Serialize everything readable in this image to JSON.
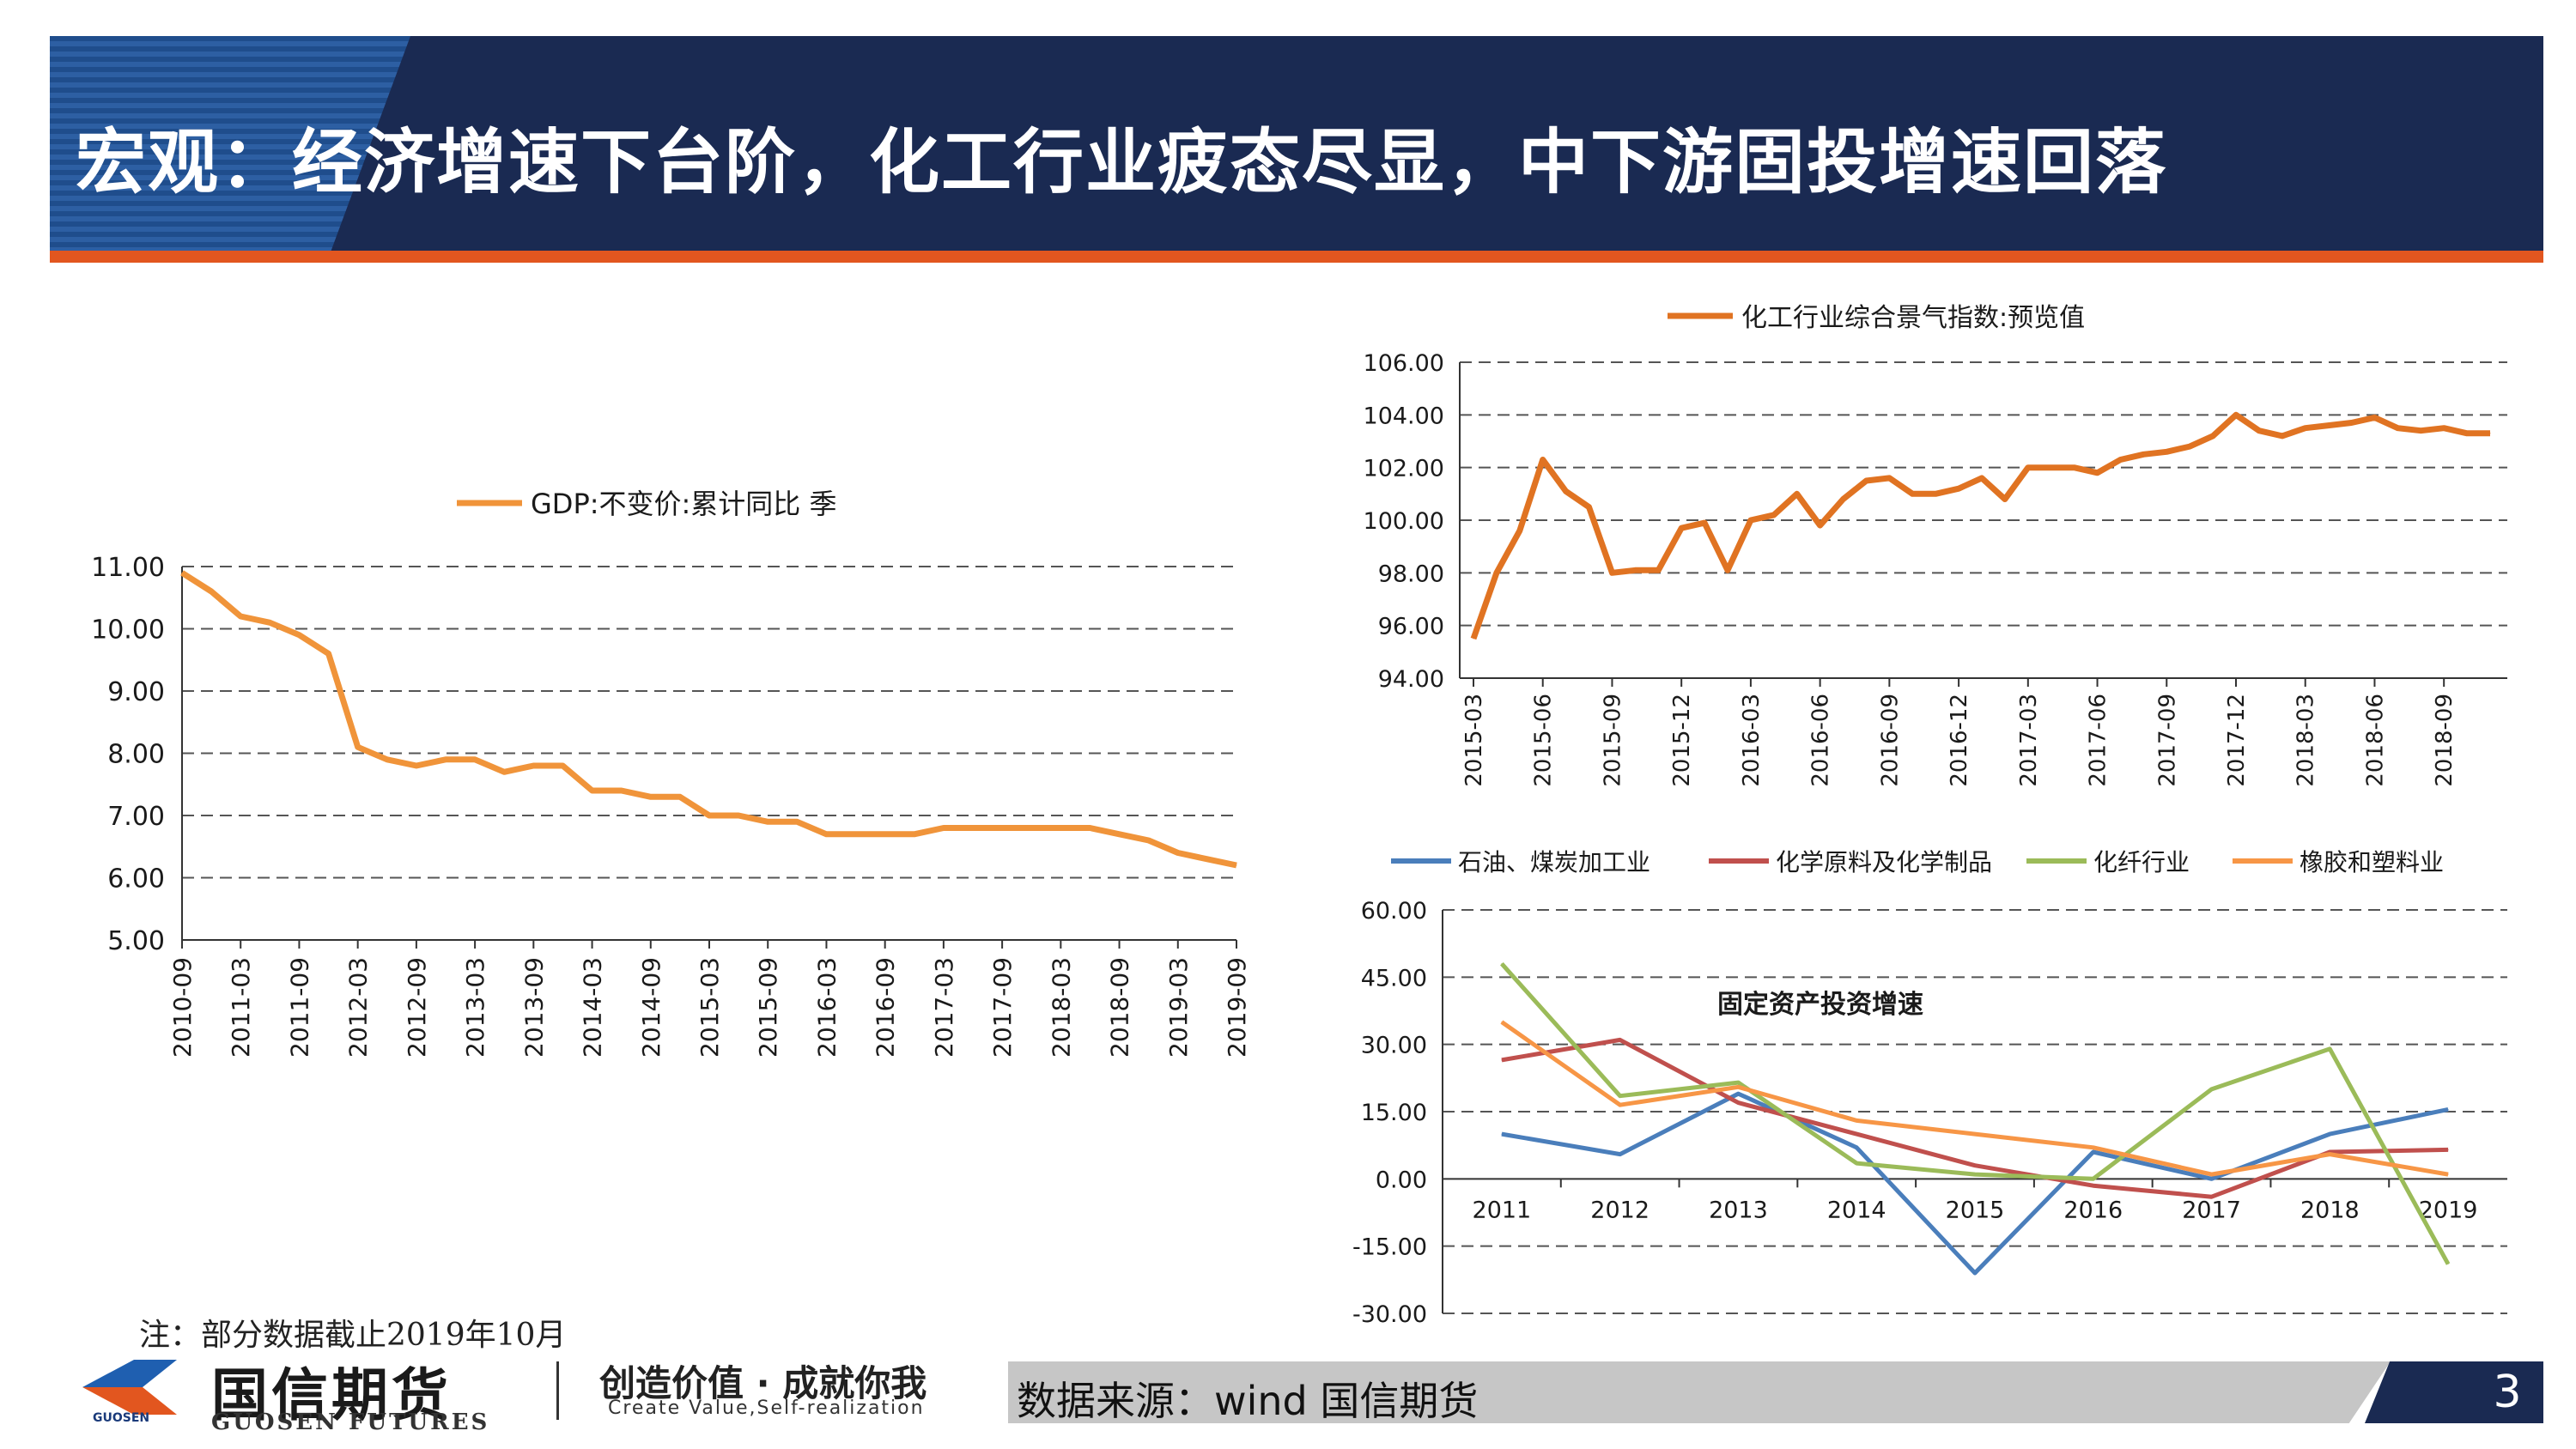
{
  "header": {
    "title": "宏观：经济增速下台阶，化工行业疲态尽显，中下游固投增速回落"
  },
  "colors": {
    "navy": "#1a2a52",
    "accent_orange": "#e2561f",
    "gdp_line": "#f0943a",
    "chem_line": "#e07322",
    "series_blue": "#4a7ebb",
    "series_red": "#c0504d",
    "series_green": "#9bbb59",
    "series_orange": "#f79646"
  },
  "chart_data": [
    {
      "type": "line",
      "legend": "GDP:不变价:累计同比 季",
      "ylim": [
        5,
        11
      ],
      "yticks": [
        "5.00",
        "6.00",
        "7.00",
        "8.00",
        "9.00",
        "10.00",
        "11.00"
      ],
      "xticks": [
        "2010-09",
        "2011-03",
        "2011-09",
        "2012-03",
        "2012-09",
        "2013-03",
        "2013-09",
        "2014-03",
        "2014-09",
        "2015-03",
        "2015-09",
        "2016-03",
        "2016-09",
        "2017-03",
        "2017-09",
        "2018-03",
        "2018-09",
        "2019-03",
        "2019-09"
      ],
      "x": [
        "2010-09",
        "2010-12",
        "2011-03",
        "2011-06",
        "2011-09",
        "2011-12",
        "2012-03",
        "2012-06",
        "2012-09",
        "2012-12",
        "2013-03",
        "2013-06",
        "2013-09",
        "2013-12",
        "2014-03",
        "2014-06",
        "2014-09",
        "2014-12",
        "2015-03",
        "2015-06",
        "2015-09",
        "2015-12",
        "2016-03",
        "2016-06",
        "2016-09",
        "2016-12",
        "2017-03",
        "2017-06",
        "2017-09",
        "2017-12",
        "2018-03",
        "2018-06",
        "2018-09",
        "2018-12",
        "2019-03",
        "2019-06",
        "2019-09"
      ],
      "values": [
        10.9,
        10.6,
        10.2,
        10.1,
        9.9,
        9.6,
        8.1,
        7.9,
        7.8,
        7.9,
        7.9,
        7.7,
        7.8,
        7.8,
        7.4,
        7.4,
        7.3,
        7.3,
        7.0,
        7.0,
        6.9,
        6.9,
        6.7,
        6.7,
        6.7,
        6.7,
        6.8,
        6.8,
        6.8,
        6.8,
        6.8,
        6.8,
        6.7,
        6.6,
        6.4,
        6.3,
        6.2
      ],
      "grid": true,
      "legend_position": "top"
    },
    {
      "type": "line",
      "legend": "化工行业综合景气指数:预览值",
      "ylim": [
        94,
        106
      ],
      "yticks": [
        "94.00",
        "96.00",
        "98.00",
        "100.00",
        "102.00",
        "104.00",
        "106.00"
      ],
      "xticks": [
        "2015-03",
        "2015-06",
        "2015-09",
        "2015-12",
        "2016-03",
        "2016-06",
        "2016-09",
        "2016-12",
        "2017-03",
        "2017-06",
        "2017-09",
        "2017-12",
        "2018-03",
        "2018-06",
        "2018-09"
      ],
      "x": [
        "2015-03",
        "2015-04",
        "2015-05",
        "2015-06",
        "2015-07",
        "2015-08",
        "2015-09",
        "2015-10",
        "2015-11",
        "2015-12",
        "2016-01",
        "2016-02",
        "2016-03",
        "2016-04",
        "2016-05",
        "2016-06",
        "2016-07",
        "2016-08",
        "2016-09",
        "2016-10",
        "2016-11",
        "2016-12",
        "2017-01",
        "2017-02",
        "2017-03",
        "2017-04",
        "2017-05",
        "2017-06",
        "2017-07",
        "2017-08",
        "2017-09",
        "2017-10",
        "2017-11",
        "2017-12",
        "2018-01",
        "2018-02",
        "2018-03",
        "2018-04",
        "2018-05",
        "2018-06",
        "2018-07",
        "2018-08",
        "2018-09",
        "2018-10",
        "2018-11"
      ],
      "values": [
        95.5,
        98.0,
        99.6,
        102.3,
        101.1,
        100.5,
        98.0,
        98.1,
        98.1,
        99.7,
        99.9,
        98.1,
        100.0,
        100.2,
        101.0,
        99.8,
        100.8,
        101.5,
        101.6,
        101.0,
        101.0,
        101.2,
        101.6,
        100.8,
        102.0,
        102.0,
        102.0,
        101.8,
        102.3,
        102.5,
        102.6,
        102.8,
        103.2,
        104.0,
        103.4,
        103.2,
        103.5,
        103.6,
        103.7,
        103.9,
        103.5,
        103.4,
        103.5,
        103.3,
        103.3
      ],
      "grid": true,
      "legend_position": "top"
    },
    {
      "type": "line",
      "title": "固定资产投资增速",
      "ylim": [
        -30,
        60
      ],
      "yticks": [
        "-30.00",
        "-15.00",
        "0.00",
        "15.00",
        "30.00",
        "45.00",
        "60.00"
      ],
      "categories": [
        "2011",
        "2012",
        "2013",
        "2014",
        "2015",
        "2016",
        "2017",
        "2018",
        "2019"
      ],
      "series": [
        {
          "name": "石油、煤炭加工业",
          "color": "#4a7ebb",
          "values": [
            10,
            5.5,
            19,
            7,
            -21,
            6,
            0,
            10,
            15.5
          ]
        },
        {
          "name": "化学原料及化学制品",
          "color": "#c0504d",
          "values": [
            26.5,
            31,
            17,
            10,
            3,
            -1.5,
            -4,
            6,
            6.5
          ]
        },
        {
          "name": "化纤行业",
          "color": "#9bbb59",
          "values": [
            48,
            18.5,
            21.5,
            3.5,
            1,
            0,
            20,
            29,
            -19
          ]
        },
        {
          "name": "橡胶和塑料业",
          "color": "#f79646",
          "values": [
            35,
            16.5,
            20.5,
            13,
            10,
            7,
            1,
            5.5,
            1
          ]
        }
      ],
      "grid": true,
      "legend_position": "top"
    }
  ],
  "footer": {
    "note": "注：部分数据截止2019年10月",
    "logo_cn": "国信期货",
    "logo_en": "GUOSEN FUTURES",
    "logo_small": "GUOSEN",
    "slogan_cn": "创造价值 · 成就你我",
    "slogan_en": "Create Value,Self-realization",
    "source": "数据来源：wind  国信期货",
    "page_number": "3"
  }
}
